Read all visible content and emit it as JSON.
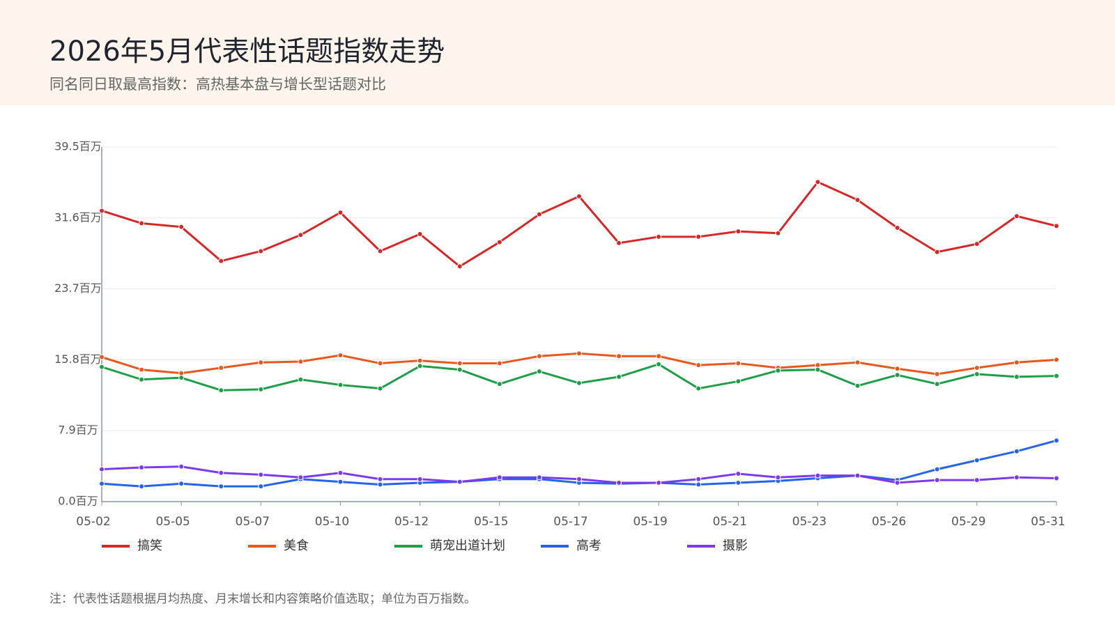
{
  "title": "2026年5月代表性话题指数走势",
  "subtitle": "同名同日取最高指数：高热基本盘与增长型话题对比",
  "note": "注：代表性话题根据月均热度、月末增长和内容策略价值选取；单位为百万指数。",
  "chart_data": {
    "type": "line",
    "categories": [
      "05-02",
      null,
      "05-05",
      null,
      "05-07",
      null,
      "05-10",
      null,
      "05-12",
      null,
      "05-15",
      null,
      "05-17",
      null,
      "05-19",
      null,
      "05-21",
      null,
      "05-23",
      null,
      "05-26",
      null,
      "05-29",
      null,
      "05-31"
    ],
    "ylim": [
      0,
      39.5
    ],
    "yticks": [
      {
        "value": 0,
        "label": "0.0百万"
      },
      {
        "value": 7.9,
        "label": "7.9百万"
      },
      {
        "value": 15.8,
        "label": "15.8百万"
      },
      {
        "value": 23.7,
        "label": "23.7百万"
      },
      {
        "value": 31.6,
        "label": "31.6百万"
      },
      {
        "value": 39.5,
        "label": "39.5百万"
      }
    ],
    "grid": true,
    "legend": "bottom",
    "series": [
      {
        "name": "搞笑",
        "color": "#d62728",
        "values": [
          32.4,
          31.0,
          30.6,
          26.8,
          27.9,
          29.7,
          32.2,
          27.9,
          29.8,
          26.2,
          28.9,
          32.0,
          34.0,
          28.8,
          29.5,
          29.5,
          30.1,
          29.9,
          35.6,
          33.6,
          30.5,
          27.8,
          28.7,
          31.8,
          30.7
        ]
      },
      {
        "name": "美食",
        "color": "#e8571c",
        "values": [
          16.1,
          14.7,
          14.3,
          14.9,
          15.5,
          15.6,
          16.3,
          15.4,
          15.7,
          15.4,
          15.4,
          16.2,
          16.5,
          16.2,
          16.2,
          15.2,
          15.4,
          14.9,
          15.2,
          15.5,
          14.8,
          14.2,
          14.9,
          15.5,
          15.8
        ]
      },
      {
        "name": "萌宠出道计划",
        "color": "#1f9e48",
        "values": [
          15.0,
          13.6,
          13.8,
          12.4,
          12.5,
          13.6,
          13.0,
          12.6,
          15.1,
          14.7,
          13.1,
          14.5,
          13.2,
          13.9,
          15.3,
          12.6,
          13.4,
          14.6,
          14.7,
          12.9,
          14.1,
          13.1,
          14.2,
          13.9,
          14.0
        ]
      },
      {
        "name": "高考",
        "color": "#2563eb",
        "values": [
          2.0,
          1.7,
          2.0,
          1.7,
          1.7,
          2.5,
          2.2,
          1.9,
          2.1,
          2.2,
          2.5,
          2.5,
          2.1,
          2.0,
          2.1,
          1.9,
          2.1,
          2.3,
          2.6,
          2.9,
          2.4,
          3.6,
          4.6,
          5.6,
          6.8
        ]
      },
      {
        "name": "摄影",
        "color": "#7c3aed",
        "values": [
          3.6,
          3.8,
          3.9,
          3.2,
          3.0,
          2.7,
          3.2,
          2.5,
          2.5,
          2.2,
          2.7,
          2.7,
          2.5,
          2.1,
          2.1,
          2.5,
          3.1,
          2.7,
          2.9,
          2.9,
          2.1,
          2.4,
          2.4,
          2.7,
          2.6
        ]
      }
    ]
  }
}
